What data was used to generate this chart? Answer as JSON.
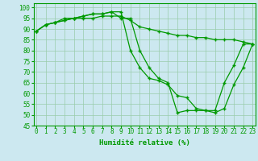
{
  "xlabel": "Humidité relative (%)",
  "background_color": "#cce8f0",
  "grid_color": "#99ccaa",
  "line_color": "#009900",
  "marker": "+",
  "ylim": [
    45,
    102
  ],
  "yticks": [
    45,
    50,
    55,
    60,
    65,
    70,
    75,
    80,
    85,
    90,
    95,
    100
  ],
  "xticks": [
    0,
    1,
    2,
    3,
    4,
    5,
    6,
    7,
    8,
    9,
    10,
    11,
    12,
    13,
    14,
    15,
    16,
    17,
    18,
    19,
    20,
    21,
    22,
    23
  ],
  "series": [
    [
      89,
      92,
      93,
      94,
      95,
      96,
      97,
      97,
      98,
      95,
      95,
      80,
      72,
      67,
      65,
      51,
      52,
      52,
      52,
      51,
      53,
      64,
      72,
      83
    ],
    [
      89,
      92,
      93,
      94,
      95,
      96,
      97,
      97,
      98,
      98,
      80,
      72,
      67,
      66,
      64,
      59,
      58,
      53,
      52,
      52,
      65,
      73,
      83,
      83
    ],
    [
      89,
      92,
      93,
      95,
      95,
      95,
      95,
      96,
      96,
      96,
      94,
      91,
      90,
      89,
      88,
      87,
      87,
      86,
      86,
      85,
      85,
      85,
      84,
      83
    ]
  ],
  "xlabel_fontsize": 6.5,
  "tick_fontsize": 5.5
}
